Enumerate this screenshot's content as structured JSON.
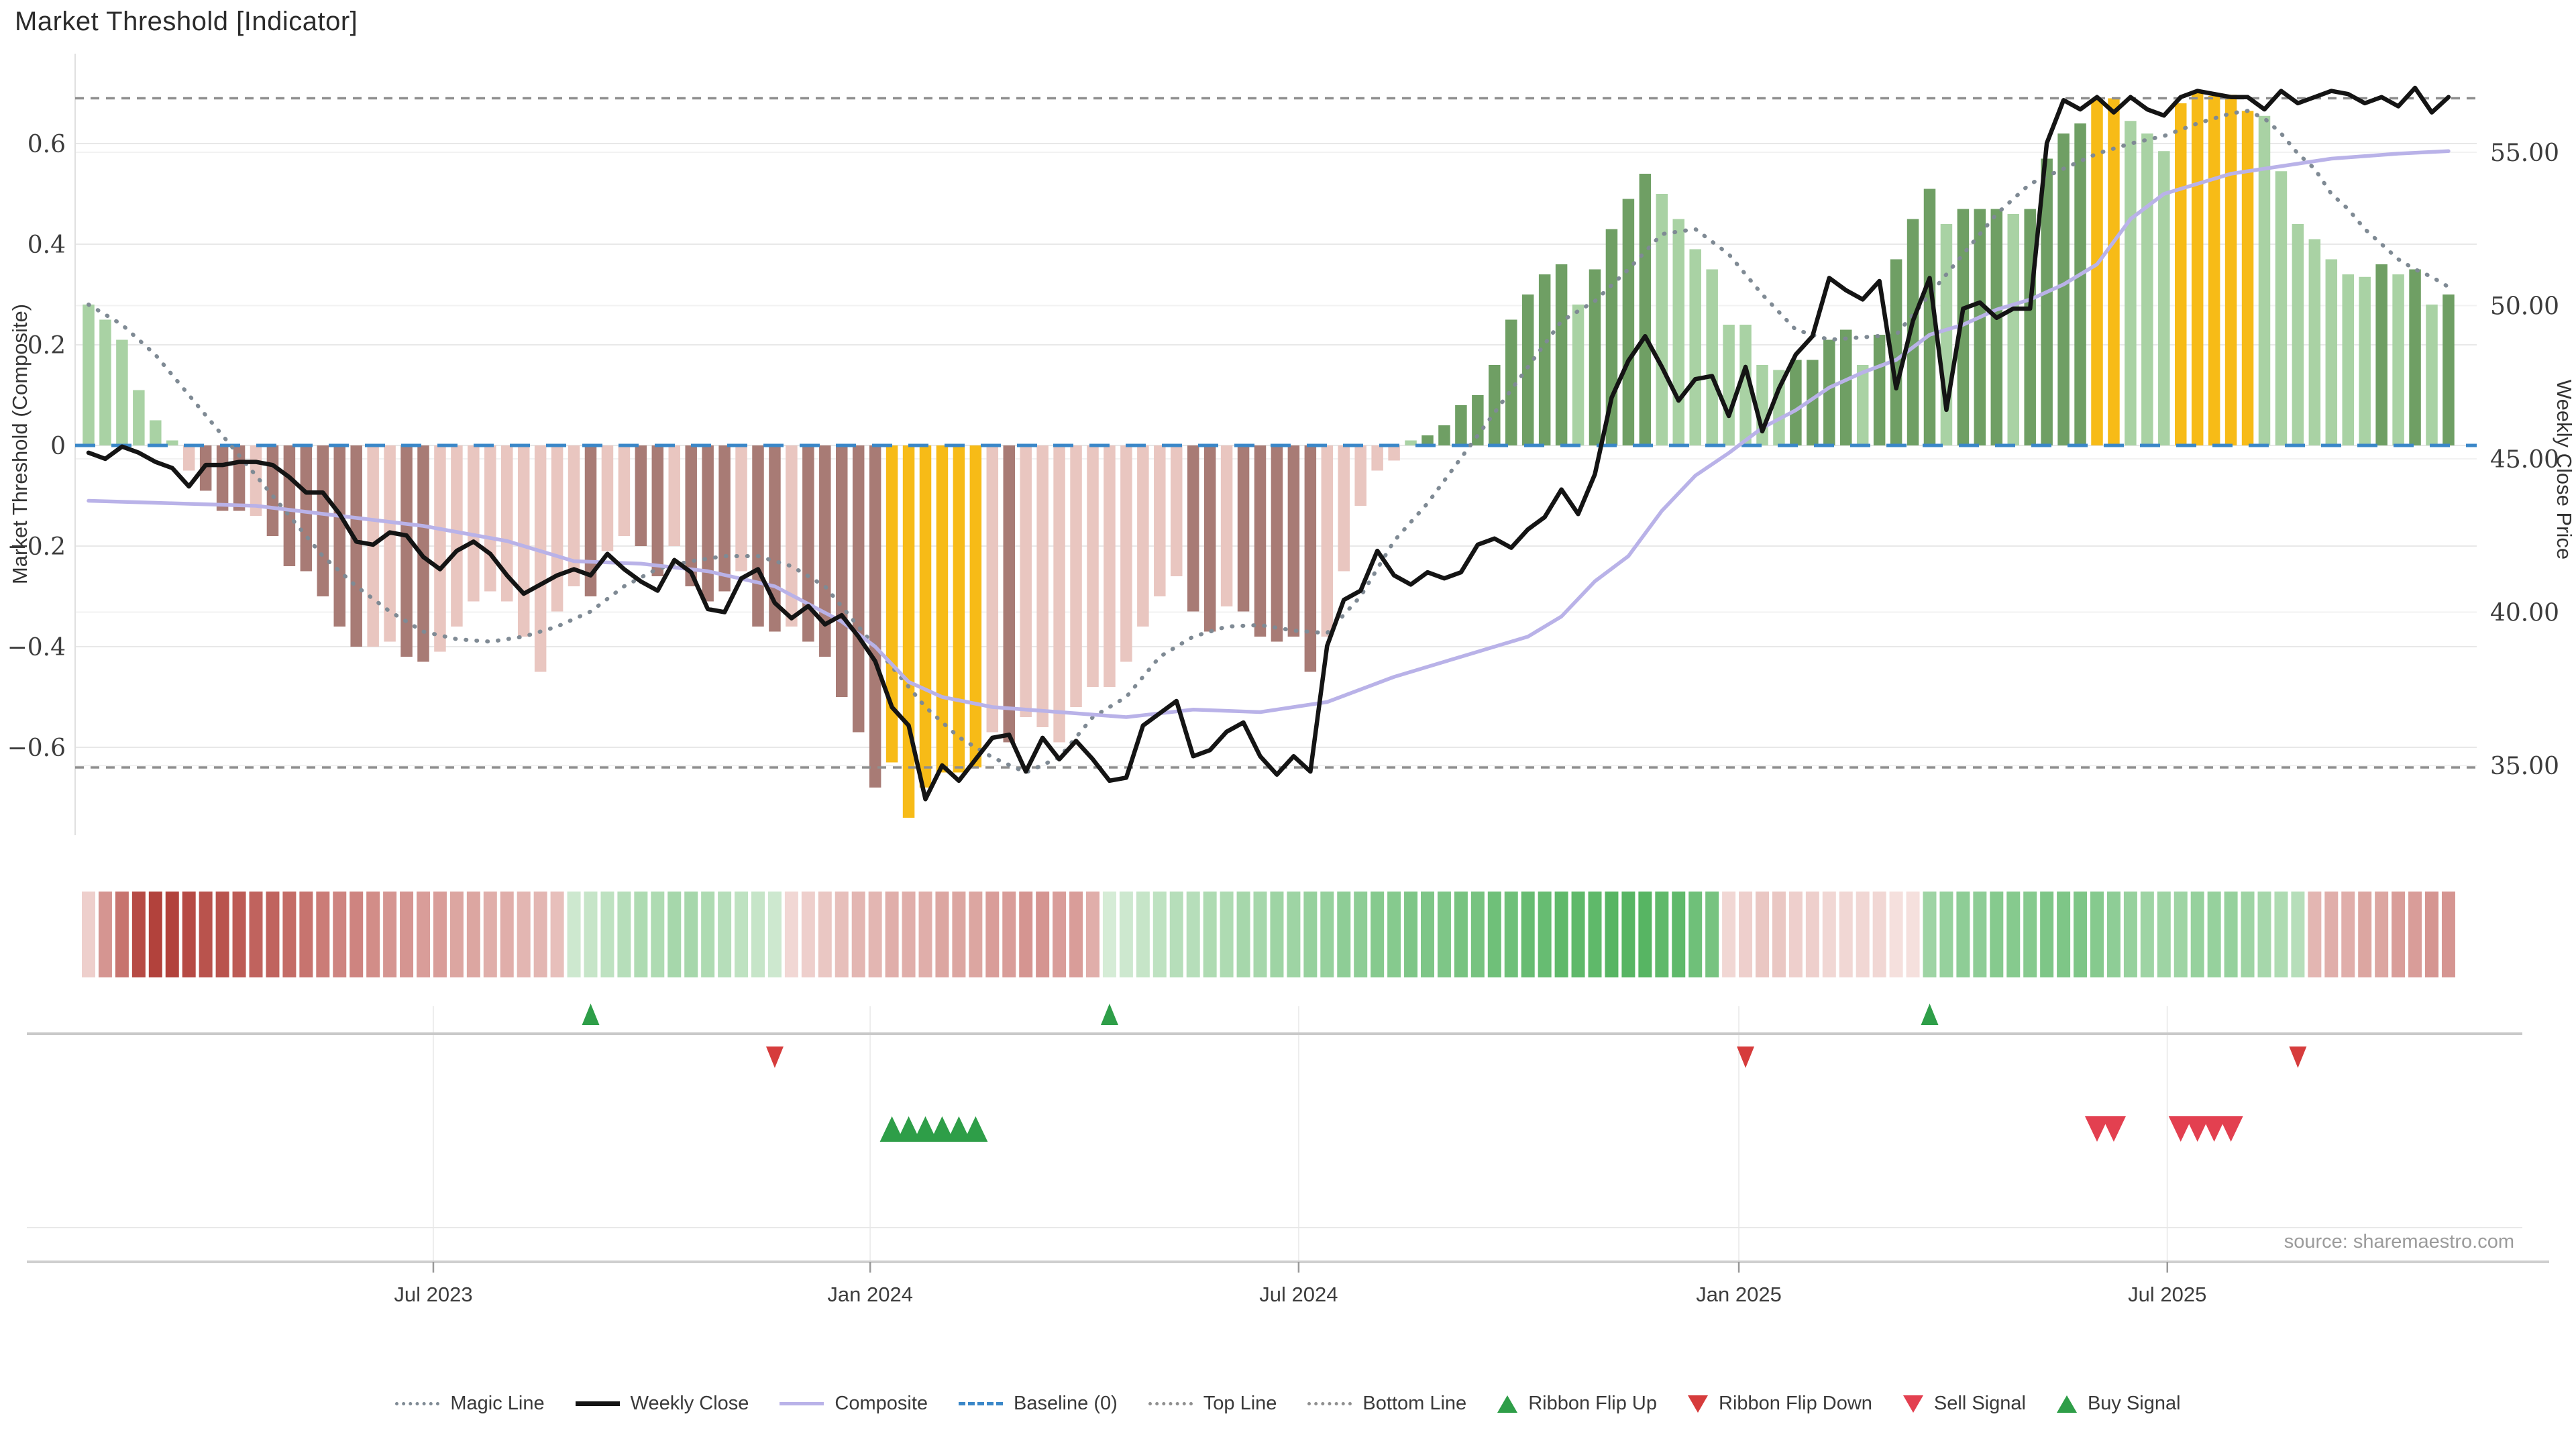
{
  "title": "Market Threshold [Indicator]",
  "source_text": "source: sharemaestro.com",
  "colors": {
    "bar_green_light": "#a9d2a4",
    "bar_green_dark": "#6f9f64",
    "bar_pink": "#e9c6c0",
    "bar_maroon": "#a87b75",
    "bar_gold": "#f7bb17",
    "weekly_close_line": "#141414",
    "composite_line": "#b9b2e8",
    "magic_line": "#7f8a94",
    "top_bottom_line": "#8f8f8f",
    "baseline": "#3a87c8",
    "signal_green": "#2e9e48",
    "signal_red": "#d63c3c",
    "sell_red": "#e34050",
    "grid": "#e8e8e8"
  },
  "legend": {
    "items": [
      {
        "label": "Magic Line",
        "marker": "dotted",
        "color": "#7f8a94"
      },
      {
        "label": "Weekly Close",
        "marker": "solid-thick",
        "color": "#141414"
      },
      {
        "label": "Composite",
        "marker": "solid",
        "color": "#b9b2e8"
      },
      {
        "label": "Baseline (0)",
        "marker": "dashed",
        "color": "#3a87c8"
      },
      {
        "label": "Top Line",
        "marker": "dotted",
        "color": "#8f8f8f"
      },
      {
        "label": "Bottom Line",
        "marker": "dotted",
        "color": "#8f8f8f"
      },
      {
        "label": "Ribbon Flip Up",
        "marker": "tri-up",
        "color": "#2e9e48"
      },
      {
        "label": "Ribbon Flip Down",
        "marker": "tri-down",
        "color": "#d63c3c"
      },
      {
        "label": "Sell Signal",
        "marker": "tri-down",
        "color": "#e34050"
      },
      {
        "label": "Buy Signal",
        "marker": "tri-up",
        "color": "#2e9e48"
      }
    ]
  },
  "chart_data": {
    "type": "bar",
    "subtype": "weekly bar + line combo with ribbon and signal markers",
    "title": "Market Threshold [Indicator]",
    "x_axis": {
      "tick_labels": [
        "Jul 2023",
        "Jan 2024",
        "Jul 2024",
        "Jan 2025",
        "Jul 2025"
      ],
      "tick_weeks": [
        20.6,
        46.7,
        72.3,
        98.6,
        124.2
      ],
      "n_weeks": 142
    },
    "y_left": {
      "label": "Market Threshold (Composite)",
      "tick_labels": [
        "0.6",
        "0.4",
        "0.2",
        "0",
        "−0.2",
        "−0.4",
        "−0.6"
      ],
      "tick_values": [
        0.6,
        0.4,
        0.2,
        0,
        -0.2,
        -0.4,
        -0.6
      ],
      "ylim": [
        -0.78,
        0.78
      ]
    },
    "y_right": {
      "label": "Weekly Close Price",
      "tick_labels": [
        "55.00",
        "50.00",
        "45.00",
        "40.00",
        "35.00"
      ],
      "tick_values": [
        55,
        50,
        45,
        40,
        35
      ],
      "ylim": [
        32.2,
        58.9
      ]
    },
    "reference_lines": {
      "top_line": 0.69,
      "bottom_line": -0.64,
      "baseline": 0
    },
    "bars": {
      "name": "Market Threshold (Composite)",
      "values": [
        0.28,
        0.25,
        0.21,
        0.11,
        0.05,
        0.01,
        -0.05,
        -0.09,
        -0.13,
        -0.13,
        -0.14,
        -0.18,
        -0.24,
        -0.25,
        -0.3,
        -0.36,
        -0.4,
        -0.4,
        -0.39,
        -0.42,
        -0.43,
        -0.41,
        -0.36,
        -0.31,
        -0.29,
        -0.31,
        -0.38,
        -0.45,
        -0.33,
        -0.28,
        -0.3,
        -0.21,
        -0.18,
        -0.2,
        -0.26,
        -0.2,
        -0.28,
        -0.31,
        -0.29,
        -0.25,
        -0.36,
        -0.37,
        -0.36,
        -0.39,
        -0.42,
        -0.5,
        -0.57,
        -0.68,
        -0.63,
        -0.74,
        -0.68,
        -0.65,
        -0.65,
        -0.64,
        -0.57,
        -0.59,
        -0.54,
        -0.56,
        -0.59,
        -0.52,
        -0.48,
        -0.48,
        -0.43,
        -0.36,
        -0.3,
        -0.26,
        -0.33,
        -0.37,
        -0.32,
        -0.33,
        -0.38,
        -0.39,
        -0.38,
        -0.45,
        -0.38,
        -0.25,
        -0.12,
        -0.05,
        -0.03,
        0.01,
        0.02,
        0.04,
        0.08,
        0.1,
        0.16,
        0.25,
        0.3,
        0.34,
        0.36,
        0.28,
        0.35,
        0.43,
        0.49,
        0.54,
        0.5,
        0.45,
        0.39,
        0.35,
        0.24,
        0.24,
        0.16,
        0.15,
        0.17,
        0.17,
        0.21,
        0.23,
        0.16,
        0.22,
        0.37,
        0.45,
        0.51,
        0.44,
        0.47,
        0.47,
        0.47,
        0.46,
        0.47,
        0.57,
        0.62,
        0.64,
        0.69,
        0.69,
        0.645,
        0.62,
        0.585,
        0.68,
        0.705,
        0.695,
        0.697,
        0.665,
        0.655,
        0.545,
        0.44,
        0.41,
        0.37,
        0.34,
        0.335,
        0.36,
        0.34,
        0.35,
        0.28,
        0.3
      ],
      "color_keys": [
        "L",
        "L",
        "L",
        "L",
        "L",
        "L",
        "P",
        "M",
        "M",
        "M",
        "P",
        "M",
        "M",
        "M",
        "M",
        "M",
        "M",
        "P",
        "P",
        "M",
        "M",
        "P",
        "P",
        "P",
        "P",
        "P",
        "P",
        "P",
        "P",
        "P",
        "M",
        "P",
        "P",
        "M",
        "M",
        "P",
        "M",
        "M",
        "M",
        "P",
        "M",
        "M",
        "P",
        "M",
        "M",
        "M",
        "M",
        "M",
        "G",
        "G",
        "G",
        "G",
        "G",
        "G",
        "P",
        "M",
        "P",
        "P",
        "P",
        "P",
        "P",
        "P",
        "P",
        "P",
        "P",
        "P",
        "M",
        "M",
        "P",
        "M",
        "M",
        "M",
        "M",
        "M",
        "P",
        "P",
        "P",
        "P",
        "P",
        "L",
        "D",
        "D",
        "D",
        "D",
        "D",
        "D",
        "D",
        "D",
        "D",
        "L",
        "D",
        "D",
        "D",
        "D",
        "L",
        "L",
        "L",
        "L",
        "L",
        "L",
        "L",
        "L",
        "D",
        "D",
        "D",
        "D",
        "L",
        "D",
        "D",
        "D",
        "D",
        "L",
        "D",
        "D",
        "D",
        "L",
        "D",
        "D",
        "D",
        "D",
        "G",
        "G",
        "L",
        "L",
        "L",
        "G",
        "G",
        "G",
        "G",
        "G",
        "L",
        "L",
        "L",
        "L",
        "L",
        "L",
        "L",
        "D",
        "L",
        "D",
        "L",
        "D"
      ]
    },
    "weekly_close": {
      "name": "Weekly Close",
      "values": [
        45.2,
        45.0,
        45.4,
        45.2,
        44.9,
        44.7,
        44.1,
        44.8,
        44.8,
        44.9,
        44.9,
        44.8,
        44.4,
        43.9,
        43.9,
        43.2,
        42.3,
        42.2,
        42.6,
        42.5,
        41.8,
        41.4,
        42.0,
        42.3,
        41.9,
        41.2,
        40.6,
        40.9,
        41.2,
        41.4,
        41.2,
        41.9,
        41.4,
        41.0,
        40.7,
        41.7,
        41.3,
        40.1,
        40.0,
        41.1,
        41.4,
        40.3,
        39.8,
        40.2,
        39.6,
        39.9,
        39.2,
        38.4,
        36.9,
        36.3,
        33.9,
        35.0,
        34.5,
        35.2,
        35.9,
        36.0,
        34.8,
        35.9,
        35.2,
        35.8,
        35.2,
        34.5,
        34.6,
        36.3,
        36.7,
        37.1,
        35.3,
        35.5,
        36.1,
        36.4,
        35.3,
        34.7,
        35.3,
        34.8,
        38.9,
        40.4,
        40.7,
        42.0,
        41.2,
        40.9,
        41.3,
        41.1,
        41.3,
        42.2,
        42.4,
        42.1,
        42.7,
        43.1,
        44.0,
        43.2,
        44.5,
        47.0,
        48.2,
        49.0,
        48.0,
        46.9,
        47.6,
        47.7,
        46.4,
        48.0,
        45.9,
        47.3,
        48.4,
        49.0,
        50.9,
        50.5,
        50.2,
        50.8,
        47.3,
        49.5,
        50.9,
        46.6,
        49.9,
        50.1,
        49.6,
        49.9,
        49.9,
        55.3,
        56.7,
        56.4,
        56.8,
        56.3,
        56.8,
        56.4,
        56.2,
        56.8,
        57.0,
        56.9,
        56.8,
        56.8,
        56.4,
        57.0,
        56.6,
        56.8,
        57.0,
        56.9,
        56.6,
        56.8,
        56.5,
        57.1,
        56.3,
        56.8
      ]
    },
    "composite_line": {
      "name": "Composite",
      "anchors": [
        [
          0,
          -0.11
        ],
        [
          10,
          -0.12
        ],
        [
          15,
          -0.14
        ],
        [
          20,
          -0.16
        ],
        [
          25,
          -0.19
        ],
        [
          29,
          -0.23
        ],
        [
          33,
          -0.235
        ],
        [
          37,
          -0.25
        ],
        [
          41,
          -0.28
        ],
        [
          45,
          -0.35
        ],
        [
          47,
          -0.4
        ],
        [
          49,
          -0.47
        ],
        [
          51,
          -0.5
        ],
        [
          54,
          -0.52
        ],
        [
          58,
          -0.53
        ],
        [
          62,
          -0.54
        ],
        [
          66,
          -0.525
        ],
        [
          70,
          -0.53
        ],
        [
          74,
          -0.51
        ],
        [
          78,
          -0.46
        ],
        [
          80,
          -0.44
        ],
        [
          84,
          -0.4
        ],
        [
          86,
          -0.38
        ],
        [
          88,
          -0.34
        ],
        [
          90,
          -0.27
        ],
        [
          92,
          -0.22
        ],
        [
          94,
          -0.13
        ],
        [
          96,
          -0.06
        ],
        [
          98,
          -0.015
        ],
        [
          100,
          0.035
        ],
        [
          102,
          0.07
        ],
        [
          104,
          0.115
        ],
        [
          106,
          0.145
        ],
        [
          108,
          0.17
        ],
        [
          110,
          0.22
        ],
        [
          112,
          0.24
        ],
        [
          114,
          0.27
        ],
        [
          116,
          0.29
        ],
        [
          118,
          0.32
        ],
        [
          120,
          0.36
        ],
        [
          122,
          0.45
        ],
        [
          124,
          0.5
        ],
        [
          126,
          0.52
        ],
        [
          128,
          0.54
        ],
        [
          130,
          0.55
        ],
        [
          132,
          0.56
        ],
        [
          134,
          0.57
        ],
        [
          136,
          0.575
        ],
        [
          138,
          0.58
        ],
        [
          141,
          0.585
        ]
      ]
    },
    "magic_line": {
      "name": "Magic Line",
      "anchors": [
        [
          0,
          0.28
        ],
        [
          2,
          0.24
        ],
        [
          4,
          0.18
        ],
        [
          6,
          0.1
        ],
        [
          8,
          0.02
        ],
        [
          10,
          -0.06
        ],
        [
          12,
          -0.14
        ],
        [
          14,
          -0.22
        ],
        [
          16,
          -0.28
        ],
        [
          18,
          -0.33
        ],
        [
          20,
          -0.37
        ],
        [
          22,
          -0.385
        ],
        [
          24,
          -0.39
        ],
        [
          26,
          -0.38
        ],
        [
          28,
          -0.36
        ],
        [
          30,
          -0.33
        ],
        [
          32,
          -0.28
        ],
        [
          34,
          -0.245
        ],
        [
          36,
          -0.23
        ],
        [
          38,
          -0.22
        ],
        [
          40,
          -0.22
        ],
        [
          42,
          -0.24
        ],
        [
          44,
          -0.28
        ],
        [
          46,
          -0.36
        ],
        [
          48,
          -0.44
        ],
        [
          50,
          -0.52
        ],
        [
          52,
          -0.58
        ],
        [
          54,
          -0.62
        ],
        [
          56,
          -0.65
        ],
        [
          58,
          -0.62
        ],
        [
          60,
          -0.54
        ],
        [
          62,
          -0.5
        ],
        [
          64,
          -0.42
        ],
        [
          66,
          -0.38
        ],
        [
          68,
          -0.36
        ],
        [
          70,
          -0.357
        ],
        [
          72,
          -0.368
        ],
        [
          74,
          -0.373
        ],
        [
          76,
          -0.3
        ],
        [
          78,
          -0.19
        ],
        [
          80,
          -0.115
        ],
        [
          82,
          -0.025
        ],
        [
          84,
          0.065
        ],
        [
          86,
          0.156
        ],
        [
          88,
          0.247
        ],
        [
          90,
          0.287
        ],
        [
          92,
          0.35
        ],
        [
          94,
          0.42
        ],
        [
          96,
          0.43
        ],
        [
          98,
          0.38
        ],
        [
          100,
          0.3
        ],
        [
          102,
          0.23
        ],
        [
          104,
          0.21
        ],
        [
          106,
          0.215
        ],
        [
          108,
          0.22
        ],
        [
          110,
          0.3
        ],
        [
          112,
          0.38
        ],
        [
          114,
          0.46
        ],
        [
          116,
          0.52
        ],
        [
          118,
          0.55
        ],
        [
          120,
          0.58
        ],
        [
          122,
          0.6
        ],
        [
          124,
          0.615
        ],
        [
          126,
          0.64
        ],
        [
          128,
          0.66
        ],
        [
          129,
          0.665
        ],
        [
          130,
          0.65
        ],
        [
          131,
          0.62
        ],
        [
          132,
          0.58
        ],
        [
          133,
          0.55
        ],
        [
          134,
          0.5
        ],
        [
          135,
          0.47
        ],
        [
          136,
          0.43
        ],
        [
          137,
          0.4
        ],
        [
          138,
          0.37
        ],
        [
          139,
          0.35
        ],
        [
          140,
          0.335
        ],
        [
          141,
          0.315
        ]
      ]
    },
    "ribbon": {
      "name": "Ribbon",
      "values": [
        -0.15,
        -0.5,
        -0.7,
        -0.95,
        -1.0,
        -1.0,
        -0.95,
        -0.9,
        -0.9,
        -0.85,
        -0.8,
        -0.8,
        -0.75,
        -0.7,
        -0.65,
        -0.6,
        -0.6,
        -0.55,
        -0.5,
        -0.5,
        -0.45,
        -0.45,
        -0.4,
        -0.4,
        -0.35,
        -0.35,
        -0.3,
        -0.3,
        -0.25,
        0.2,
        0.25,
        0.3,
        0.35,
        0.4,
        0.4,
        0.45,
        0.45,
        0.4,
        0.35,
        0.3,
        0.25,
        0.2,
        -0.1,
        -0.15,
        -0.2,
        -0.25,
        -0.3,
        -0.3,
        -0.35,
        -0.35,
        -0.35,
        -0.4,
        -0.4,
        -0.4,
        -0.45,
        -0.45,
        -0.5,
        -0.5,
        -0.45,
        -0.45,
        -0.35,
        0.15,
        0.2,
        0.25,
        0.3,
        0.35,
        0.35,
        0.4,
        0.4,
        0.45,
        0.45,
        0.5,
        0.5,
        0.55,
        0.55,
        0.6,
        0.6,
        0.65,
        0.65,
        0.7,
        0.7,
        0.7,
        0.75,
        0.75,
        0.8,
        0.8,
        0.85,
        0.85,
        0.9,
        0.9,
        0.9,
        0.95,
        0.95,
        0.95,
        0.9,
        0.9,
        0.8,
        0.75,
        -0.1,
        -0.15,
        -0.2,
        -0.2,
        -0.15,
        -0.15,
        -0.1,
        -0.1,
        -0.1,
        -0.1,
        -0.05,
        -0.05,
        0.5,
        0.55,
        0.6,
        0.6,
        0.65,
        0.65,
        0.65,
        0.7,
        0.7,
        0.7,
        0.65,
        0.6,
        0.55,
        0.5,
        0.5,
        0.5,
        0.55,
        0.55,
        0.55,
        0.5,
        0.45,
        0.4,
        0.35,
        -0.3,
        -0.35,
        -0.35,
        -0.4,
        -0.4,
        -0.45,
        -0.45,
        -0.5,
        -0.5
      ]
    },
    "signals": {
      "ribbon_flip_up_weeks": [
        30,
        61,
        110
      ],
      "ribbon_flip_down_weeks": [
        41,
        99,
        132
      ],
      "buy_signal_weeks": [
        48,
        49,
        50,
        51,
        52,
        53
      ],
      "sell_signal_weeks": [
        120,
        121,
        125,
        126,
        127,
        128
      ]
    }
  }
}
